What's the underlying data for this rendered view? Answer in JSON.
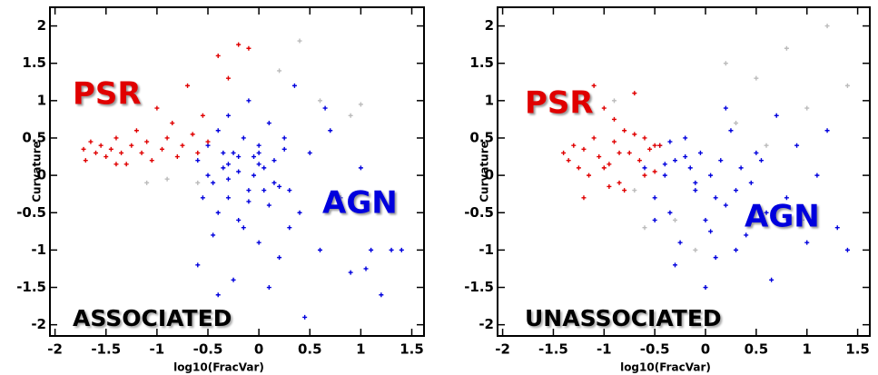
{
  "chart_data": [
    {
      "type": "scatter",
      "title": "ASSOCIATED",
      "xlabel": "log10(FracVar)",
      "ylabel": "Curvature",
      "xlim": [
        -2.05,
        1.62
      ],
      "ylim": [
        -2.15,
        2.25
      ],
      "xticks": [
        -2,
        -1.5,
        -1,
        -0.5,
        0,
        0.5,
        1,
        1.5
      ],
      "yticks": [
        -2,
        -1.5,
        -1,
        -0.5,
        0,
        0.5,
        1,
        1.5,
        2
      ],
      "series": [
        {
          "name": "PSR",
          "color": "#e00000",
          "x": [
            -1.72,
            -1.7,
            -1.65,
            -1.6,
            -1.55,
            -1.5,
            -1.45,
            -1.4,
            -1.35,
            -1.3,
            -1.25,
            -1.2,
            -1.15,
            -1.1,
            -1.05,
            -1.0,
            -0.95,
            -0.9,
            -0.85,
            -0.8,
            -0.75,
            -0.7,
            -0.65,
            -0.6,
            -0.55,
            -0.5,
            -0.4,
            -0.3,
            -1.4,
            -0.2,
            -0.1
          ],
          "values": [
            0.35,
            0.2,
            0.45,
            0.3,
            0.4,
            0.25,
            0.35,
            0.5,
            0.3,
            0.15,
            0.4,
            0.6,
            0.3,
            0.45,
            0.2,
            0.9,
            0.35,
            0.5,
            0.7,
            0.25,
            0.4,
            1.2,
            0.55,
            0.3,
            0.8,
            0.45,
            1.6,
            1.3,
            0.15,
            1.75,
            1.7
          ]
        },
        {
          "name": "AGN",
          "color": "#0000dd",
          "x": [
            -0.6,
            -0.5,
            -0.45,
            -0.4,
            -0.35,
            -0.3,
            -0.3,
            -0.25,
            -0.2,
            -0.2,
            -0.15,
            -0.1,
            -0.1,
            -0.05,
            0,
            0,
            0.05,
            0.1,
            0.1,
            0.15,
            0.2,
            0.25,
            0.3,
            0.35,
            0.4,
            0.5,
            0.6,
            0.7,
            0.8,
            0.9,
            1.0,
            1.1,
            1.2,
            1.3,
            -0.55,
            -0.45,
            -0.35,
            -0.25,
            -0.15,
            -0.05,
            0.05,
            0.15,
            0.25,
            -0.4,
            -0.3,
            -0.2,
            -0.1,
            0.0,
            0.1,
            0.2,
            0.3,
            -0.5,
            -0.3,
            0.0,
            0.45,
            0.65,
            -0.6,
            -0.4,
            1.4,
            1.05
          ],
          "values": [
            0.2,
            0.4,
            -0.1,
            0.6,
            0.1,
            -0.3,
            0.8,
            0.3,
            -0.6,
            0.05,
            0.5,
            -0.2,
            1.0,
            0.25,
            -0.9,
            0.4,
            0.1,
            -0.4,
            0.7,
            0.2,
            -1.1,
            0.5,
            -0.2,
            1.2,
            -0.5,
            0.3,
            -1.0,
            0.6,
            -0.3,
            -1.3,
            0.1,
            -1.0,
            -1.6,
            -1.0,
            -0.3,
            -0.8,
            0.3,
            -1.4,
            -0.7,
            0.0,
            -0.2,
            -0.1,
            0.35,
            -0.5,
            0.15,
            0.25,
            -0.35,
            0.3,
            -1.5,
            -0.15,
            -0.7,
            0.0,
            -0.05,
            0.15,
            -1.9,
            0.9,
            -1.2,
            -1.6,
            -1.0,
            -1.25
          ]
        },
        {
          "color": "#bbbbbb",
          "x": [
            -0.9,
            -1.1,
            0.2,
            0.4,
            0.9,
            0.6,
            -0.6,
            1.0
          ],
          "values": [
            -0.05,
            -0.1,
            1.4,
            1.8,
            0.8,
            1.0,
            -0.1,
            0.95
          ]
        }
      ]
    },
    {
      "type": "scatter",
      "title": "UNASSOCIATED",
      "xlabel": "log10(FracVar)",
      "ylabel": "Curvature",
      "xlim": [
        -2.05,
        1.62
      ],
      "ylim": [
        -2.15,
        2.25
      ],
      "xticks": [
        -2,
        -1.5,
        -1,
        -0.5,
        0,
        0.5,
        1,
        1.5
      ],
      "yticks": [
        -2,
        -1.5,
        -1,
        -0.5,
        0,
        0.5,
        1,
        1.5,
        2
      ],
      "series": [
        {
          "name": "PSR",
          "color": "#e00000",
          "x": [
            -1.4,
            -1.35,
            -1.3,
            -1.25,
            -1.2,
            -1.15,
            -1.1,
            -1.05,
            -1.0,
            -0.95,
            -0.9,
            -0.85,
            -0.8,
            -0.75,
            -0.7,
            -0.65,
            -0.6,
            -0.55,
            -0.5,
            -0.45,
            -1.2,
            -1.0,
            -0.9,
            -0.8,
            -0.7,
            -0.6,
            -0.5,
            -1.1,
            -0.85,
            -0.95
          ],
          "values": [
            0.3,
            0.2,
            0.4,
            0.1,
            0.35,
            0.0,
            0.5,
            0.25,
            0.9,
            0.15,
            0.45,
            -0.1,
            0.6,
            0.3,
            1.1,
            0.2,
            0.5,
            0.35,
            0.05,
            0.4,
            -0.3,
            0.1,
            0.75,
            -0.2,
            0.55,
            0.0,
            0.4,
            1.2,
            0.3,
            -0.15
          ]
        },
        {
          "name": "AGN",
          "color": "#0000dd",
          "x": [
            -0.6,
            -0.5,
            -0.45,
            -0.4,
            -0.35,
            -0.3,
            -0.25,
            -0.2,
            -0.15,
            -0.1,
            -0.05,
            0,
            0.05,
            0.1,
            0.15,
            0.2,
            0.25,
            0.3,
            0.35,
            0.4,
            0.5,
            0.6,
            0.7,
            0.8,
            0.9,
            1.0,
            1.1,
            1.2,
            1.3,
            -0.5,
            -0.4,
            -0.3,
            -0.2,
            -0.1,
            0,
            0.1,
            0.2,
            0.3,
            0.45,
            0.55,
            -0.35,
            0.05,
            0.65,
            1.4,
            0.95
          ],
          "values": [
            0.1,
            -0.3,
            0.4,
            0.0,
            -0.5,
            0.2,
            -0.9,
            0.5,
            0.1,
            -0.2,
            0.3,
            -0.6,
            0.0,
            -1.1,
            0.2,
            -0.4,
            0.6,
            -0.2,
            0.1,
            -0.8,
            0.3,
            -0.5,
            0.8,
            -0.3,
            0.4,
            -0.9,
            0.0,
            0.6,
            -0.7,
            -0.6,
            0.15,
            -1.2,
            0.25,
            -0.1,
            -1.5,
            -0.3,
            0.9,
            -1.0,
            -0.1,
            0.2,
            0.45,
            -0.75,
            -1.4,
            -1.0,
            -0.6
          ]
        },
        {
          "color": "#bbbbbb",
          "x": [
            -0.7,
            -0.6,
            -0.3,
            0.0,
            0.2,
            0.5,
            0.8,
            1.0,
            1.2,
            0.3,
            -0.9,
            1.4,
            0.6,
            -0.1
          ],
          "values": [
            -0.2,
            -0.7,
            -0.6,
            -1.5,
            1.5,
            1.3,
            1.7,
            0.9,
            2.0,
            0.7,
            1.0,
            1.2,
            0.4,
            -1.0
          ]
        }
      ]
    }
  ]
}
